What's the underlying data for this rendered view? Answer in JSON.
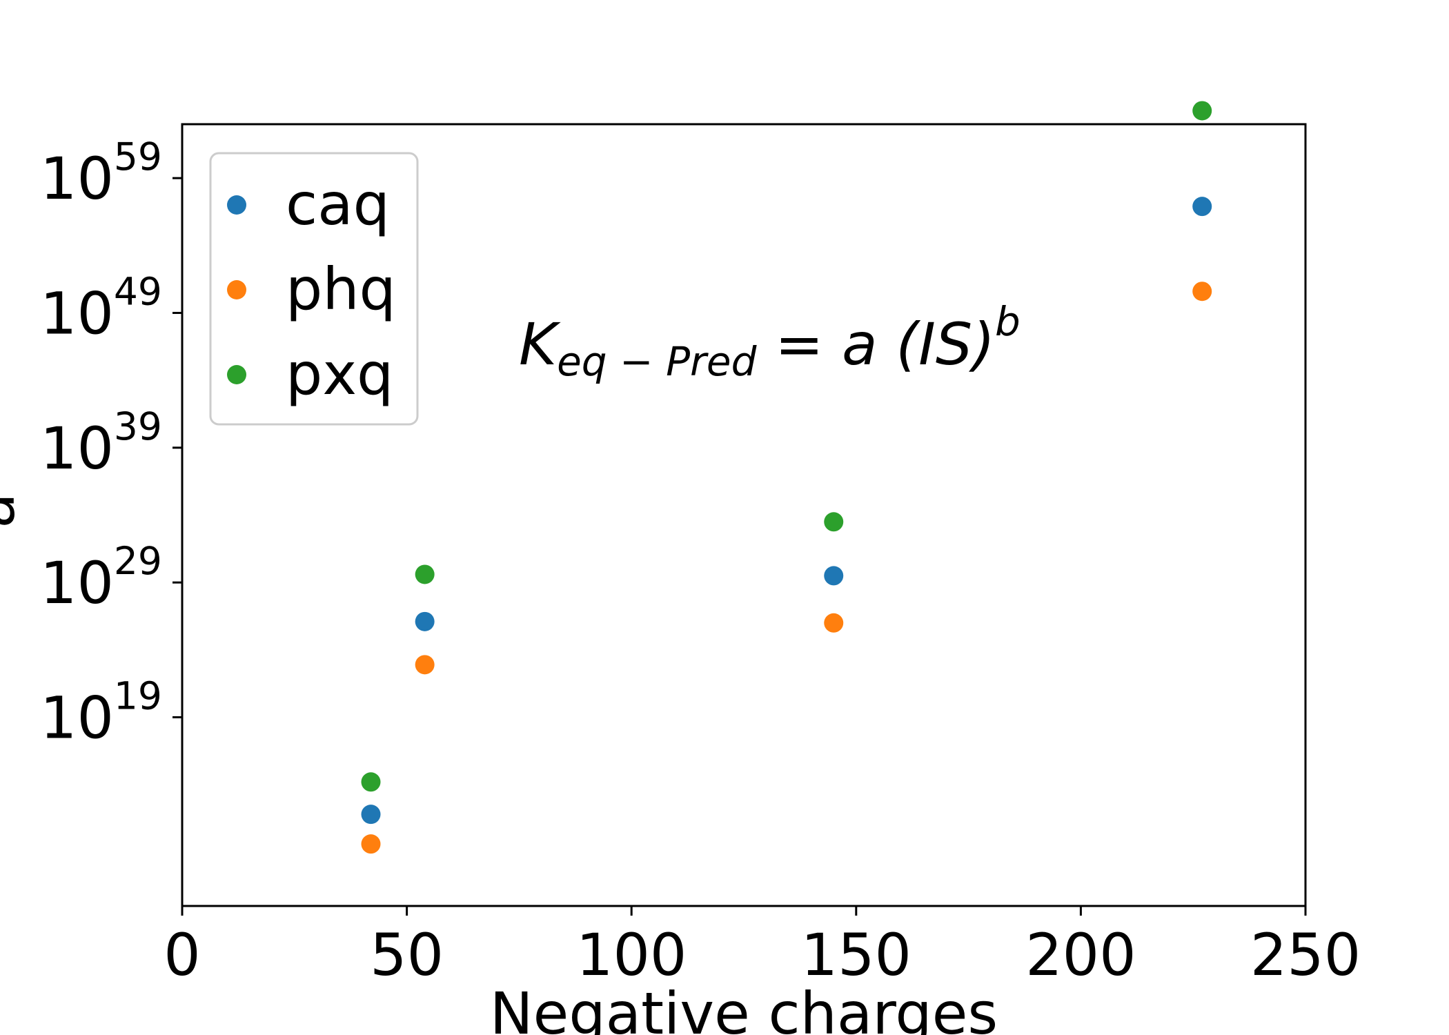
{
  "chart_data": {
    "type": "scatter",
    "title": "",
    "xlabel": "Negative charges",
    "ylabel": "a",
    "xlim": [
      0,
      250
    ],
    "ylim_log10": [
      5,
      63
    ],
    "yscale": "log",
    "x_ticks": [
      0,
      50,
      100,
      150,
      200,
      250
    ],
    "y_ticks": [
      {
        "base": "10",
        "exp": "19",
        "log10": 19
      },
      {
        "base": "10",
        "exp": "29",
        "log10": 29
      },
      {
        "base": "10",
        "exp": "39",
        "log10": 39
      },
      {
        "base": "10",
        "exp": "49",
        "log10": 49
      },
      {
        "base": "10",
        "exp": "59",
        "log10": 59
      }
    ],
    "grid": false,
    "legend_position": "top-left",
    "x": [
      42,
      54,
      145,
      227
    ],
    "series": [
      {
        "name": "caq",
        "color": "#1f77b4",
        "y_log10": [
          11.8,
          26.1,
          29.5,
          56.9
        ]
      },
      {
        "name": "phq",
        "color": "#ff7f0e",
        "y_log10": [
          9.6,
          22.9,
          26.0,
          50.6
        ]
      },
      {
        "name": "pxq",
        "color": "#2ca02c",
        "y_log10": [
          14.2,
          29.6,
          33.5,
          64.0
        ]
      }
    ],
    "annotation": {
      "K": "K",
      "sub": "eq − Pred",
      "eq": " = a (IS)",
      "sup": "b"
    }
  }
}
